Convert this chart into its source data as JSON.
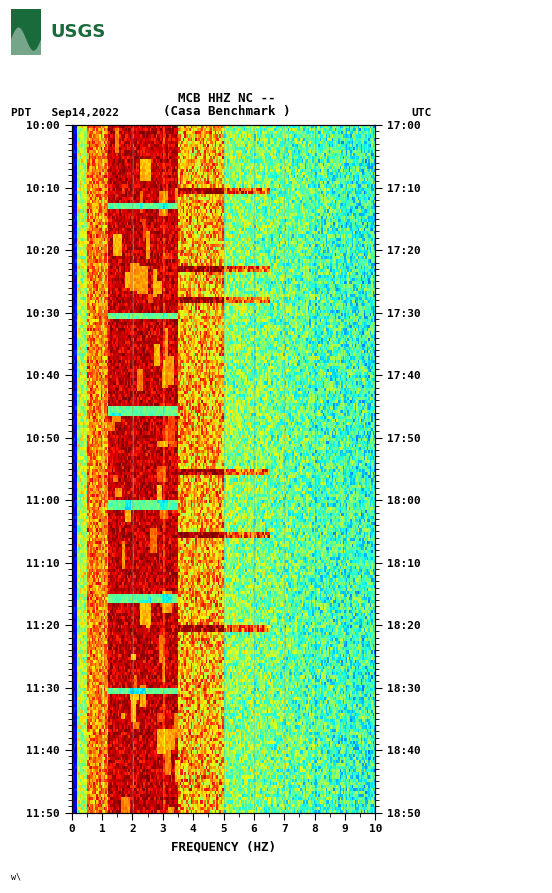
{
  "title_line1": "MCB HHZ NC --",
  "title_line2": "(Casa Benchmark )",
  "left_label": "PDT   Sep14,2022",
  "right_label": "UTC",
  "xlabel": "FREQUENCY (HZ)",
  "freq_min": 0,
  "freq_max": 10,
  "ytick_labels_left": [
    "10:00",
    "10:10",
    "10:20",
    "10:30",
    "10:40",
    "10:50",
    "11:00",
    "11:10",
    "11:20",
    "11:30",
    "11:40",
    "11:50"
  ],
  "ytick_labels_right": [
    "17:00",
    "17:10",
    "17:20",
    "17:30",
    "17:40",
    "17:50",
    "18:00",
    "18:10",
    "18:20",
    "18:30",
    "18:40",
    "18:50"
  ],
  "n_freq": 200,
  "n_time": 220,
  "seed": 12345,
  "background_color": "#ffffff",
  "colormap": "jet",
  "fig_width": 5.52,
  "fig_height": 8.93,
  "usgs_green": "#1a6b3c",
  "black_panel_color": "#000000",
  "grid_color": "#888888",
  "grid_alpha": 0.4
}
